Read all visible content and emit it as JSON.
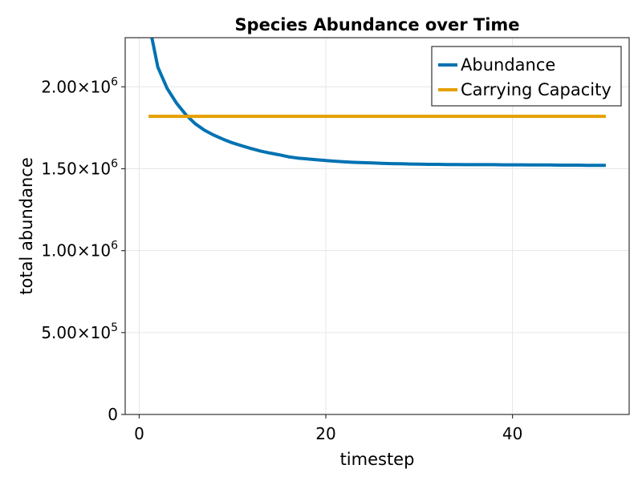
{
  "chart_data": {
    "type": "line",
    "title": "Species Abundance over Time",
    "xlabel": "timestep",
    "ylabel": "total abundance",
    "xlim": [
      -1.5,
      52.5
    ],
    "ylim": [
      0,
      2300000
    ],
    "x_ticks": [
      {
        "value": 0,
        "label": "0"
      },
      {
        "value": 20,
        "label": "20"
      },
      {
        "value": 40,
        "label": "40"
      }
    ],
    "y_ticks": [
      {
        "value": 0,
        "mantissa": "0",
        "exp": ""
      },
      {
        "value": 500000,
        "mantissa": "5.00×10",
        "exp": "5"
      },
      {
        "value": 1000000,
        "mantissa": "1.00×10",
        "exp": "6"
      },
      {
        "value": 1500000,
        "mantissa": "1.50×10",
        "exp": "6"
      },
      {
        "value": 2000000,
        "mantissa": "2.00×10",
        "exp": "6"
      }
    ],
    "grid": true,
    "legend_position": "top-right",
    "series": [
      {
        "name": "Abundance",
        "color": "#0072B2",
        "x": [
          1,
          2,
          3,
          4,
          5,
          6,
          7,
          8,
          9,
          10,
          11,
          12,
          13,
          14,
          15,
          16,
          17,
          18,
          19,
          20,
          21,
          22,
          23,
          24,
          25,
          26,
          27,
          28,
          29,
          30,
          31,
          32,
          33,
          34,
          35,
          36,
          37,
          38,
          39,
          40,
          41,
          42,
          43,
          44,
          45,
          46,
          47,
          48,
          49,
          50
        ],
        "values": [
          2400000,
          2120000,
          1990000,
          1900000,
          1830000,
          1775000,
          1735000,
          1705000,
          1680000,
          1658000,
          1640000,
          1623000,
          1608000,
          1596000,
          1585000,
          1573000,
          1565000,
          1560000,
          1555000,
          1550000,
          1546000,
          1542000,
          1539000,
          1537000,
          1535000,
          1533000,
          1531000,
          1530000,
          1529000,
          1528000,
          1527000,
          1527000,
          1526000,
          1526000,
          1525000,
          1525000,
          1525000,
          1525000,
          1524000,
          1524000,
          1524000,
          1523000,
          1523000,
          1523000,
          1522000,
          1522000,
          1522000,
          1521000,
          1521000,
          1521000
        ]
      },
      {
        "name": "Carrying Capacity",
        "color": "#E69F00",
        "x": [
          1,
          50
        ],
        "values": [
          1820000,
          1820000
        ]
      }
    ]
  }
}
